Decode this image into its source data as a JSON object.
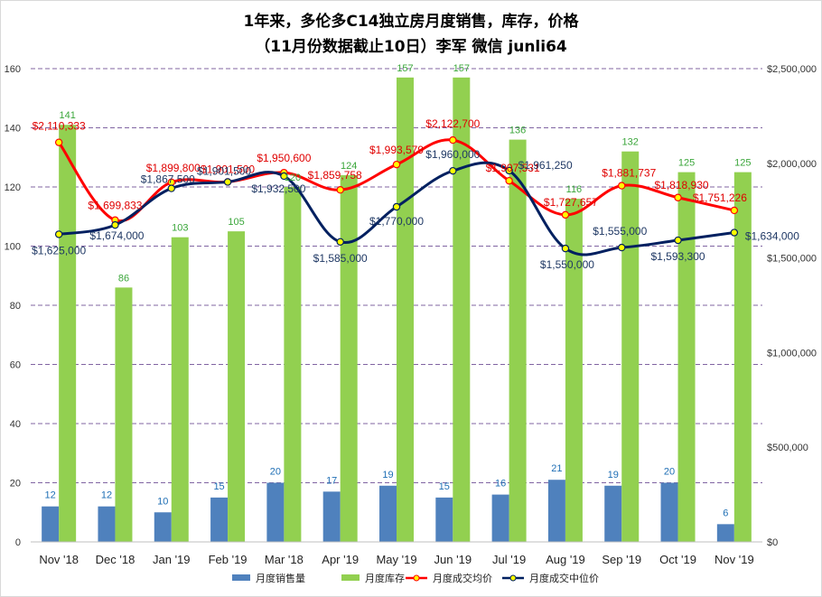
{
  "chart_data": {
    "type": "bar+line",
    "title_line1": "1年来，多伦多C14独立房月度销售，库存，价格",
    "title_line2": "（11月份数据截止10日）李军 微信 junli64",
    "categories": [
      "Nov '18",
      "Dec '18",
      "Jan '19",
      "Feb '19",
      "Mar '18",
      "Apr '19",
      "May '19",
      "Jun '19",
      "Jul '19",
      "Aug '19",
      "Sep '19",
      "Oct '19",
      "Nov '19"
    ],
    "left_axis": {
      "ylim": [
        0,
        160
      ],
      "ticks": [
        0,
        20,
        40,
        60,
        80,
        100,
        120,
        140,
        160
      ]
    },
    "right_axis": {
      "ylim": [
        0,
        2500000
      ],
      "ticks": [
        0,
        500000,
        1000000,
        1500000,
        2000000,
        2500000
      ],
      "tick_labels": [
        "$0",
        "$500,000",
        "$1,000,000",
        "$1,500,000",
        "$2,000,000",
        "$2,500,000"
      ]
    },
    "series": [
      {
        "name": "月度销售量",
        "type": "bar",
        "axis": "left",
        "color": "#4f81bd",
        "label_color": "#1f6fb5",
        "values": [
          12,
          12,
          10,
          15,
          20,
          17,
          19,
          15,
          16,
          21,
          19,
          20,
          6
        ],
        "labels": [
          "12",
          "12",
          "10",
          "15",
          "20",
          "17",
          "19",
          "15",
          "16",
          "21",
          "19",
          "20",
          "6"
        ]
      },
      {
        "name": "月度库存",
        "type": "bar",
        "axis": "left",
        "color": "#92d050",
        "label_color": "#3aa63a",
        "values": [
          141,
          86,
          103,
          105,
          120,
          124,
          157,
          157,
          136,
          116,
          132,
          125,
          125
        ],
        "labels": [
          "141",
          "86",
          "103",
          "105",
          "120",
          "124",
          "157",
          "157",
          "136",
          "116",
          "132",
          "125",
          "125"
        ]
      },
      {
        "name": "月度成交均价",
        "type": "line",
        "axis": "right",
        "color": "#ff0000",
        "label_color": "#e00000",
        "values": [
          2110333,
          1699833,
          1899800,
          1901500,
          1950600,
          1859758,
          1993579,
          2122700,
          1907531,
          1727657,
          1881737,
          1818930,
          1751226
        ],
        "labels": [
          "$2,110,333",
          "$1,699,833",
          "$1,899,800",
          "$1,901,500",
          "$1,950,600",
          "$1,859,758",
          "$1,993,579",
          "$2,122,700",
          "$1,907,531",
          "$1,727,657",
          "$1,881,737",
          "$1,818,930",
          "$1,751,226"
        ]
      },
      {
        "name": "月度成交中位价",
        "type": "line",
        "axis": "right",
        "color": "#002060",
        "label_color": "#1f3864",
        "values": [
          1625000,
          1674000,
          1867500,
          1901500,
          1932500,
          1585000,
          1770000,
          1960000,
          1961250,
          1550000,
          1555000,
          1593300,
          1634000
        ],
        "labels": [
          "$1,625,000",
          "$1,674,000",
          "$1,867,500",
          "$1,901,500",
          "$1,932,500",
          "$1,585,000",
          "$1,770,000",
          "$1,960,000",
          "$1,961,250",
          "$1,550,000",
          "$1,555,000",
          "$1,593,300",
          "$1,634,000"
        ]
      }
    ],
    "grid": true,
    "legend_position": "bottom"
  }
}
